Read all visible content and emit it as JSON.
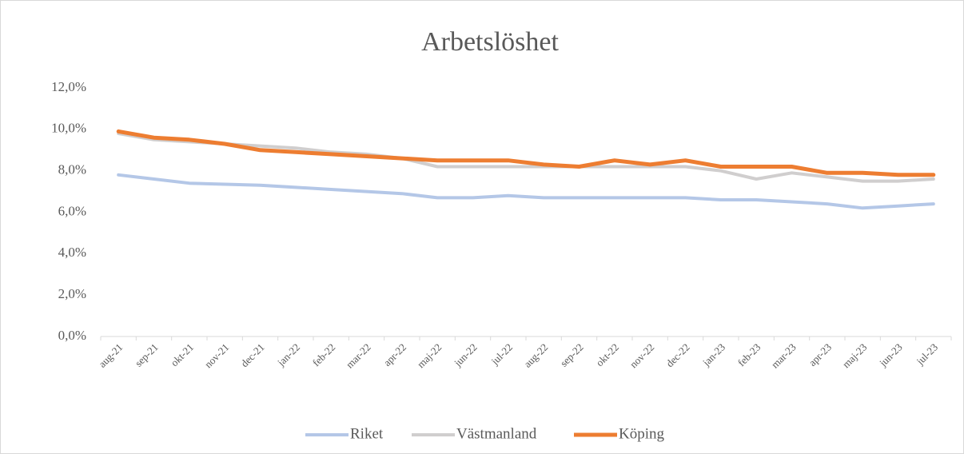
{
  "chart_data": {
    "type": "line",
    "title": "Arbetslöshet",
    "categories": [
      "aug-21",
      "sep-21",
      "okt-21",
      "nov-21",
      "dec-21",
      "jan-22",
      "feb-22",
      "mar-22",
      "apr-22",
      "maj-22",
      "jun-22",
      "jul-22",
      "aug-22",
      "sep-22",
      "okt-22",
      "nov-22",
      "dec-22",
      "jan-23",
      "feb-23",
      "mar-23",
      "apr-23",
      "maj-23",
      "jun-23",
      "jul-23"
    ],
    "series": [
      {
        "name": "Riket",
        "color": "#b4c7e7",
        "values": [
          7.8,
          7.6,
          7.4,
          7.35,
          7.3,
          7.2,
          7.1,
          7.0,
          6.9,
          6.7,
          6.7,
          6.8,
          6.7,
          6.7,
          6.7,
          6.7,
          6.7,
          6.6,
          6.6,
          6.5,
          6.4,
          6.2,
          6.3,
          6.4
        ]
      },
      {
        "name": "Västmanland",
        "color": "#d0cece",
        "values": [
          9.8,
          9.5,
          9.4,
          9.3,
          9.2,
          9.1,
          8.9,
          8.8,
          8.6,
          8.2,
          8.2,
          8.2,
          8.2,
          8.2,
          8.2,
          8.2,
          8.2,
          8.0,
          7.6,
          7.9,
          7.7,
          7.5,
          7.5,
          7.6
        ]
      },
      {
        "name": "Köping",
        "color": "#ed7d31",
        "values": [
          9.9,
          9.6,
          9.5,
          9.3,
          9.0,
          8.9,
          8.8,
          8.7,
          8.6,
          8.5,
          8.5,
          8.5,
          8.3,
          8.2,
          8.5,
          8.3,
          8.5,
          8.2,
          8.2,
          8.2,
          7.9,
          7.9,
          7.8,
          7.8
        ]
      }
    ],
    "ylim": [
      0,
      12
    ],
    "yticks": [
      {
        "value": 0,
        "label": "0,0%"
      },
      {
        "value": 2,
        "label": "2,0%"
      },
      {
        "value": 4,
        "label": "4,0%"
      },
      {
        "value": 6,
        "label": "6,0%"
      },
      {
        "value": 8,
        "label": "8,0%"
      },
      {
        "value": 10,
        "label": "10,0%"
      },
      {
        "value": 12,
        "label": "12,0%"
      }
    ],
    "grid": false,
    "legend": "bottom"
  }
}
